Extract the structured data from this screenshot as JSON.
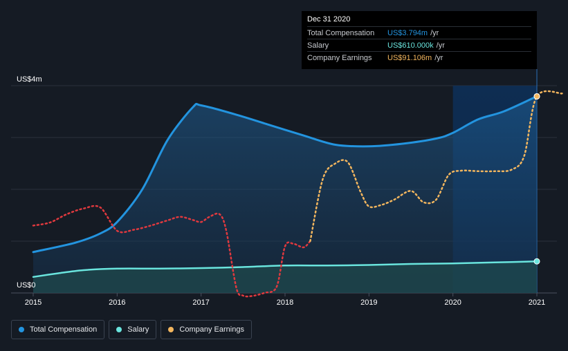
{
  "chart_data": {
    "type": "line",
    "x_ticks": [
      "2015",
      "2016",
      "2017",
      "2018",
      "2019",
      "2020",
      "2021"
    ],
    "y_labels": [
      "US$4m",
      "US$0"
    ],
    "ylim": [
      0,
      4
    ],
    "series": [
      {
        "name": "Total Compensation",
        "color": "#2394df",
        "style": "solid-area",
        "x": [
          2015.0,
          2015.5,
          2015.8,
          2016.0,
          2016.3,
          2016.6,
          2016.9,
          2017.0,
          2017.4,
          2017.8,
          2018.2,
          2018.6,
          2019.0,
          2019.4,
          2019.8,
          2020.0,
          2020.3,
          2020.6,
          2021.0
        ],
        "values": [
          0.79,
          0.97,
          1.15,
          1.37,
          2.0,
          2.95,
          3.58,
          3.62,
          3.45,
          3.25,
          3.05,
          2.86,
          2.83,
          2.88,
          2.98,
          3.09,
          3.35,
          3.5,
          3.794
        ]
      },
      {
        "name": "Salary",
        "color": "#6ae5de",
        "style": "solid-area",
        "x": [
          2015.0,
          2015.3,
          2015.6,
          2016.0,
          2016.5,
          2017.0,
          2017.5,
          2018.0,
          2018.5,
          2019.0,
          2019.5,
          2020.0,
          2020.5,
          2021.0
        ],
        "values": [
          0.31,
          0.38,
          0.44,
          0.47,
          0.47,
          0.48,
          0.5,
          0.53,
          0.53,
          0.54,
          0.56,
          0.57,
          0.59,
          0.61
        ]
      },
      {
        "name": "Company Earnings",
        "color_positive": "#f3b65e",
        "color_negative": "#e0393e",
        "style": "dotted",
        "x": [
          2015.0,
          2015.2,
          2015.4,
          2015.6,
          2015.8,
          2016.0,
          2016.2,
          2016.4,
          2016.6,
          2016.75,
          2016.9,
          2017.0,
          2017.1,
          2017.22,
          2017.3,
          2017.42,
          2017.5,
          2017.6,
          2017.75,
          2017.9,
          2018.0,
          2018.1,
          2018.22,
          2018.3,
          2018.45,
          2018.6,
          2018.75,
          2018.9,
          2019.0,
          2019.15,
          2019.3,
          2019.5,
          2019.65,
          2019.8,
          2019.95,
          2020.1,
          2020.3,
          2020.5,
          2020.7,
          2020.85,
          2021.0,
          2021.3
        ],
        "values": [
          1.3,
          1.36,
          1.52,
          1.63,
          1.65,
          1.2,
          1.22,
          1.3,
          1.4,
          1.47,
          1.41,
          1.37,
          1.47,
          1.52,
          1.2,
          0.1,
          -0.05,
          -0.06,
          0.0,
          0.12,
          0.9,
          0.95,
          0.88,
          1.0,
          2.2,
          2.5,
          2.52,
          1.95,
          1.67,
          1.7,
          1.8,
          1.97,
          1.75,
          1.8,
          2.28,
          2.36,
          2.35,
          2.35,
          2.38,
          2.65,
          3.794,
          3.85
        ]
      }
    ],
    "highlight_range": [
      2020.0,
      2021.0
    ],
    "tooltip": {
      "date": "Dec 31 2020",
      "rows": [
        {
          "label": "Total Compensation",
          "value": "US$3.794m",
          "unit": "/yr",
          "color": "#2394df"
        },
        {
          "label": "Salary",
          "value": "US$610.000k",
          "unit": "/yr",
          "color": "#6ae5de"
        },
        {
          "label": "Company Earnings",
          "value": "US$91.106m",
          "unit": "/yr",
          "color": "#f3b65e"
        }
      ]
    },
    "legend": [
      {
        "label": "Total Compensation",
        "color": "#2394df"
      },
      {
        "label": "Salary",
        "color": "#6ae5de"
      },
      {
        "label": "Company Earnings",
        "color": "#f3b65e"
      }
    ]
  }
}
